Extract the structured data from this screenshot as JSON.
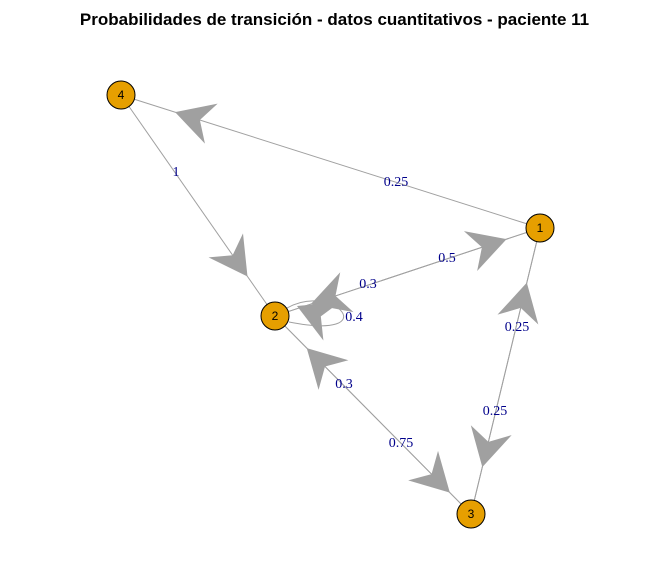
{
  "title": "Probabilidades de transición - datos cuantitativos - paciente 11",
  "colors": {
    "node_fill": "#e69f00",
    "edge": "#a0a0a0",
    "label": "#00008b"
  },
  "nodes": [
    {
      "id": "1",
      "label": "1"
    },
    {
      "id": "2",
      "label": "2"
    },
    {
      "id": "3",
      "label": "3"
    },
    {
      "id": "4",
      "label": "4"
    }
  ],
  "edges": [
    {
      "from": "1",
      "to": "4",
      "label": "0.25"
    },
    {
      "from": "4",
      "to": "2",
      "label": "1"
    },
    {
      "from": "2",
      "to": "1",
      "label": "0.5"
    },
    {
      "from": "1",
      "to": "2",
      "label": "0.3"
    },
    {
      "from": "2",
      "to": "2",
      "label": "0.4"
    },
    {
      "from": "3",
      "to": "2",
      "label": "0.3"
    },
    {
      "from": "2",
      "to": "3",
      "label": "0.75"
    },
    {
      "from": "3",
      "to": "1",
      "label": "0.25"
    },
    {
      "from": "1",
      "to": "3",
      "label": "0.25"
    }
  ]
}
